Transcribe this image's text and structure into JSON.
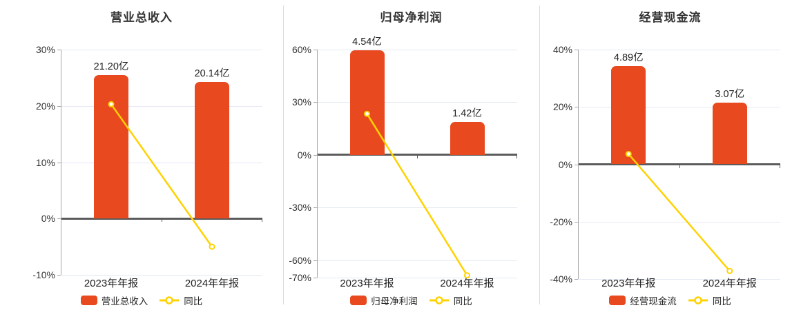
{
  "colors": {
    "bar": "#e8491f",
    "line": "#ffd200",
    "grid": "#e5e9f4",
    "zero_axis": "#5b5b5b",
    "axis": "#a6a6a6",
    "tick_text": "#333333",
    "label_text": "#222222"
  },
  "chart_data": [
    {
      "type": "bar",
      "title": "营业总收入",
      "categories": [
        "2023年年报",
        "2024年年报"
      ],
      "bar_series": {
        "name": "营业总收入",
        "labels": [
          "21.20亿",
          "20.14亿"
        ],
        "plotted_pct": [
          25.5,
          24.2
        ]
      },
      "line_series": {
        "name": "同比",
        "values_pct": [
          20.3,
          -5.0
        ]
      },
      "ylim": [
        -10,
        30
      ],
      "ytick_values": [
        30,
        20,
        10,
        0,
        -10
      ],
      "ytick_labels": [
        "30%",
        "20%",
        "10%",
        "0%",
        "-10%"
      ],
      "grid": true,
      "legend_position": "bottom"
    },
    {
      "type": "bar",
      "title": "归母净利润",
      "categories": [
        "2023年年报",
        "2024年年报"
      ],
      "bar_series": {
        "name": "归母净利润",
        "labels": [
          "4.54亿",
          "1.42亿"
        ],
        "plotted_pct": [
          59.6,
          18.6
        ]
      },
      "line_series": {
        "name": "同比",
        "values_pct": [
          23.4,
          -68.7
        ]
      },
      "ylim": [
        -70,
        60
      ],
      "ytick_values": [
        60,
        30,
        0,
        -30,
        -60,
        -70
      ],
      "ytick_labels": [
        "60%",
        "30%",
        "0%",
        "-30%",
        "-60%",
        "-70%"
      ],
      "grid": true,
      "legend_position": "bottom"
    },
    {
      "type": "bar",
      "title": "经营现金流",
      "categories": [
        "2023年年报",
        "2024年年报"
      ],
      "bar_series": {
        "name": "经营现金流",
        "labels": [
          "4.89亿",
          "3.07亿"
        ],
        "plotted_pct": [
          34.2,
          21.5
        ]
      },
      "line_series": {
        "name": "同比",
        "values_pct": [
          3.6,
          -37.2
        ]
      },
      "ylim": [
        -40,
        40
      ],
      "ytick_values": [
        40,
        20,
        0,
        -20,
        -40
      ],
      "ytick_labels": [
        "40%",
        "20%",
        "0%",
        "-20%",
        "-40%"
      ],
      "grid": true,
      "legend_position": "bottom"
    }
  ]
}
